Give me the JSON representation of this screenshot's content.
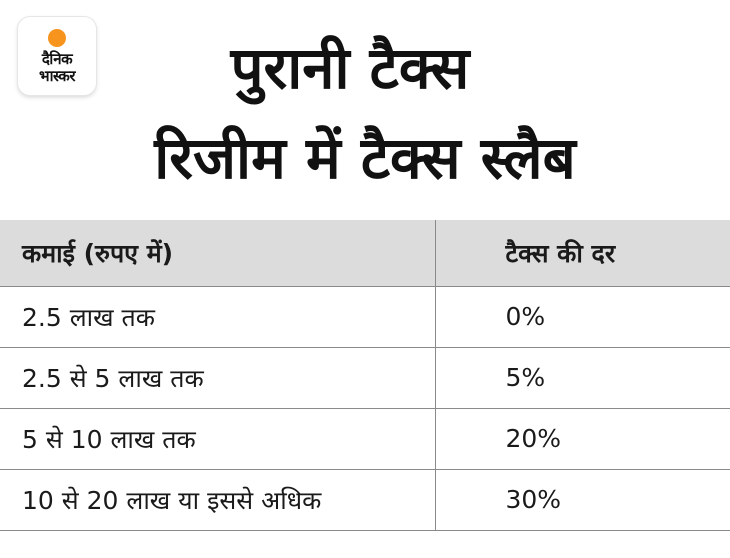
{
  "logo": {
    "line1": "दैनिक",
    "line2": "भास्कर",
    "sun_color": "#f7941d"
  },
  "title": {
    "line1": "पुरानी टैक्स",
    "line2": "रिजीम में टैक्स स्लैब"
  },
  "table": {
    "headers": {
      "income": "कमाई (रुपए में)",
      "rate": "टैक्स की दर"
    },
    "rows": [
      {
        "income": "2.5 लाख तक",
        "rate": "0%"
      },
      {
        "income": "2.5 से 5 लाख तक",
        "rate": "5%"
      },
      {
        "income": "5 से 10  लाख तक",
        "rate": "20%"
      },
      {
        "income": "10 से 20 लाख या इससे अधिक",
        "rate": "30%"
      }
    ]
  },
  "colors": {
    "header_bg": "#dcdcdc",
    "border": "#8a8a8a",
    "text": "#111111"
  }
}
